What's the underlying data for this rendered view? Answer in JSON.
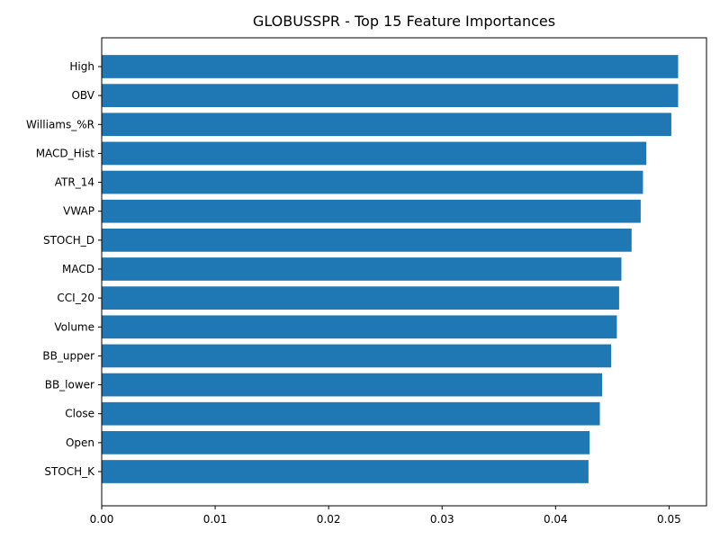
{
  "chart_data": {
    "type": "bar",
    "orientation": "horizontal",
    "title": "GLOBUSSPR - Top 15 Feature Importances",
    "xlabel": "",
    "ylabel": "",
    "xlim": [
      0,
      0.0533
    ],
    "xticks": [
      0.0,
      0.01,
      0.02,
      0.03,
      0.04,
      0.05
    ],
    "xtick_labels": [
      "0.00",
      "0.01",
      "0.02",
      "0.03",
      "0.04",
      "0.05"
    ],
    "grid": false,
    "bar_color": "#1f77b4",
    "categories": [
      "High",
      "OBV",
      "Williams_%R",
      "MACD_Hist",
      "ATR_14",
      "VWAP",
      "STOCH_D",
      "MACD",
      "CCI_20",
      "Volume",
      "BB_upper",
      "BB_lower",
      "Close",
      "Open",
      "STOCH_K"
    ],
    "values": [
      0.0508,
      0.0508,
      0.0502,
      0.048,
      0.0477,
      0.0475,
      0.0467,
      0.0458,
      0.0456,
      0.0454,
      0.0449,
      0.0441,
      0.0439,
      0.043,
      0.0429
    ]
  }
}
